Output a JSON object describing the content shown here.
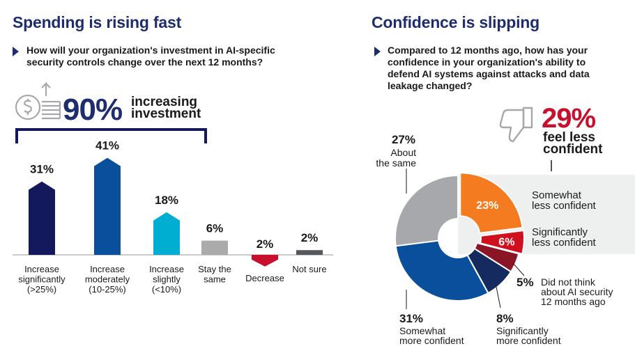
{
  "left": {
    "title": "Spending is rising fast",
    "question": "How will your organization's investment in AI-specific security controls change over the next 12 months?",
    "headline_value": "90%",
    "headline_text_line1": "increasing",
    "headline_text_line2": "investment"
  },
  "right": {
    "title": "Confidence is slipping",
    "question": "Compared to 12 months ago, how has your confidence in your organization's ability to defend AI systems against attacks and data leakage changed?",
    "headline_value": "29%",
    "headline_text_line1": "feel less",
    "headline_text_line2": "confident"
  },
  "chart_data": [
    {
      "type": "bar",
      "categories": [
        "Increase significantly (>25%)",
        "Increase moderately (10-25%)",
        "Increase slightly (<10%)",
        "Stay the same",
        "Decrease",
        "Not sure"
      ],
      "category_lines": [
        [
          "Increase",
          "significantly",
          "(>25%)"
        ],
        [
          "Increase",
          "moderately",
          "(10-25%)"
        ],
        [
          "Increase",
          "slightly",
          "(<10%)"
        ],
        [
          "Stay the",
          "same"
        ],
        [
          "Decrease"
        ],
        [
          "Not sure"
        ]
      ],
      "values": [
        31,
        41,
        18,
        6,
        -2,
        2
      ],
      "labels": [
        "31%",
        "41%",
        "18%",
        "6%",
        "2%",
        "2%"
      ],
      "colors": [
        "#13195c",
        "#0a4f9c",
        "#00aed2",
        "#ababab",
        "#c8102e",
        "#55585c"
      ],
      "bracket_covers": [
        "Increase significantly (>25%)",
        "Increase moderately (10-25%)",
        "Increase slightly (<10%)"
      ]
    },
    {
      "type": "pie",
      "labels": [
        "Somewhat less confident",
        "Significantly less confident",
        "Did not think about AI security 12 months ago",
        "Significantly more confident",
        "Somewhat more confident",
        "About the same"
      ],
      "values": [
        23,
        6,
        5,
        8,
        31,
        27
      ],
      "value_labels": [
        "23%",
        "6%",
        "5%",
        "8%",
        "31%",
        "27%"
      ],
      "colors": [
        "#f47b20",
        "#d0101f",
        "#8a1526",
        "#152a5e",
        "#0a4f9c",
        "#a7a8ab"
      ],
      "label_lines": [
        [
          "Somewhat",
          "less confident"
        ],
        [
          "Significantly",
          "less confident"
        ],
        [
          "Did not think",
          "about AI security",
          "12 months ago"
        ],
        [
          "Significantly",
          "more confident"
        ],
        [
          "Somewhat",
          "more confident"
        ],
        [
          "About",
          "the same"
        ]
      ]
    }
  ]
}
